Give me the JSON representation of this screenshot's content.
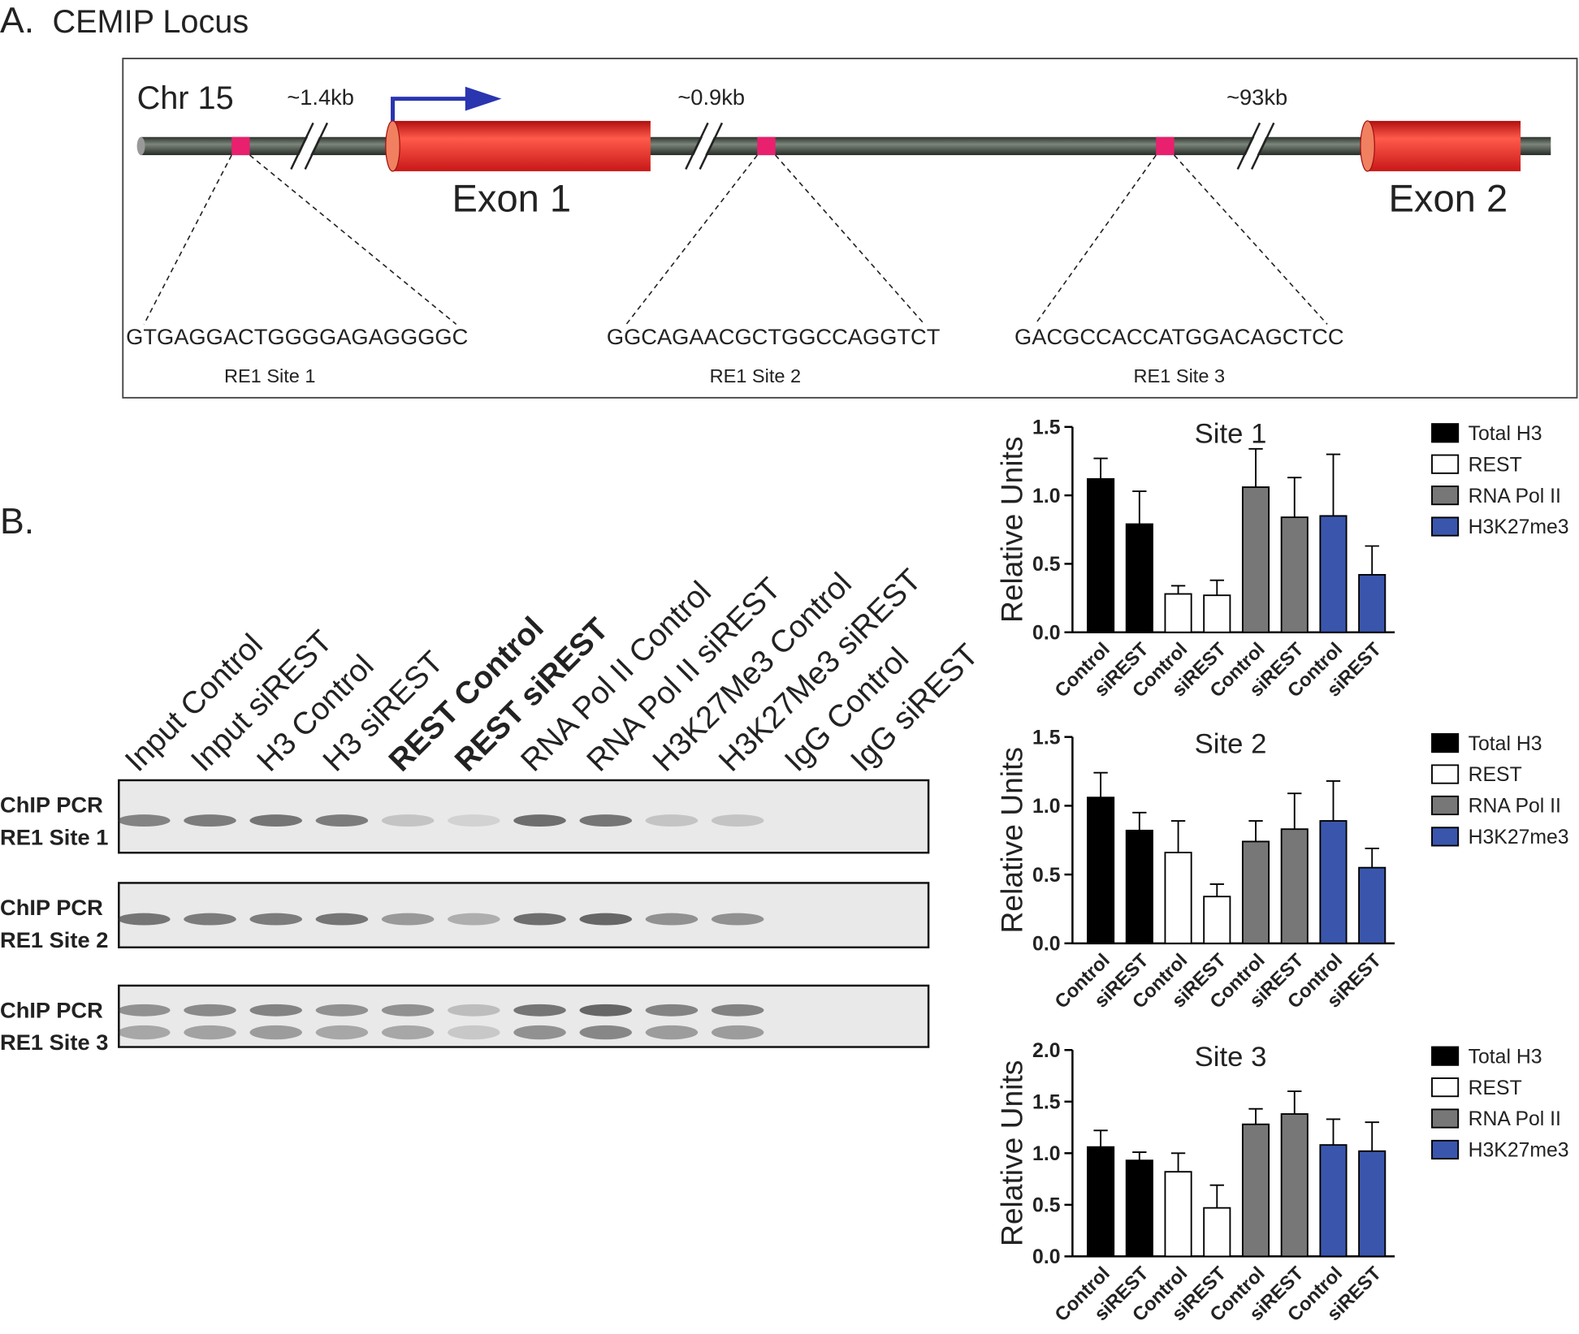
{
  "panel_a": {
    "label": "A.",
    "title": "CEMIP Locus",
    "chromosome": "Chr 15",
    "distances": [
      "~1.4kb",
      "~0.9kb",
      "~93kb"
    ],
    "exons": [
      "Exon 1",
      "Exon 2"
    ],
    "sites": [
      {
        "sequence": "GTGAGGACTGGGGAGAGGGGC",
        "label": "RE1 Site 1"
      },
      {
        "sequence": "GGCAGAACGCTGGCCAGGTCT",
        "label": "RE1 Site 2"
      },
      {
        "sequence": "GACGCCACCATGGACAGCTCC",
        "label": "RE1 Site 3"
      }
    ]
  },
  "panel_b": {
    "label": "B.",
    "lanes": [
      "Input Control",
      "Input siREST",
      "H3 Control",
      "H3 siREST",
      "REST Control",
      "REST siREST",
      "RNA Pol II Control",
      "RNA Pol II siREST",
      "H3K27Me3 Control",
      "H3K27Me3 siREST",
      "IgG Control",
      "IgG siREST"
    ],
    "rows": [
      [
        "ChIP PCR",
        "RE1 Site 1"
      ],
      [
        "ChIP PCR",
        "RE1 Site 2"
      ],
      [
        "ChIP PCR",
        "RE1 Site 3"
      ]
    ]
  },
  "chart_data": [
    {
      "type": "bar",
      "title": "Site 1",
      "y_label": "Relative Units",
      "categories": [
        "Control",
        "siREST",
        "Control",
        "siREST",
        "Control",
        "siREST",
        "Control",
        "siREST"
      ],
      "ylim": [
        0,
        1.5
      ],
      "yticks": [
        {
          "value": 0,
          "label": "0.0"
        },
        {
          "value": 0.5,
          "label": "0.5"
        },
        {
          "value": 1,
          "label": "1.0"
        },
        {
          "value": 1.5,
          "label": "1.5"
        }
      ],
      "series": [
        {
          "name": "Total H3",
          "color": "#000000",
          "values": [
            1.12,
            0.79,
            null,
            null,
            null,
            null,
            null,
            null
          ],
          "errors": [
            0.15,
            0.24,
            null,
            null,
            null,
            null,
            null,
            null
          ]
        },
        {
          "name": "REST",
          "color": "#ffffff",
          "values": [
            null,
            null,
            0.28,
            0.27,
            null,
            null,
            null,
            null
          ],
          "errors": [
            null,
            null,
            0.06,
            0.11,
            null,
            null,
            null,
            null
          ]
        },
        {
          "name": "RNA Pol II",
          "color": "#777777",
          "values": [
            null,
            null,
            null,
            null,
            1.06,
            0.84,
            null,
            null
          ],
          "errors": [
            null,
            null,
            null,
            null,
            0.28,
            0.29,
            null,
            null
          ]
        },
        {
          "name": "H3K27me3",
          "color": "#3a56ac",
          "values": [
            null,
            null,
            null,
            null,
            null,
            null,
            0.85,
            0.42
          ],
          "errors": [
            null,
            null,
            null,
            null,
            null,
            null,
            0.45,
            0.21
          ]
        }
      ]
    },
    {
      "type": "bar",
      "title": "Site 2",
      "y_label": "Relative Units",
      "categories": [
        "Control",
        "siREST",
        "Control",
        "siREST",
        "Control",
        "siREST",
        "Control",
        "siREST"
      ],
      "ylim": [
        0,
        1.5
      ],
      "yticks": [
        {
          "value": 0,
          "label": "0.0"
        },
        {
          "value": 0.5,
          "label": "0.5"
        },
        {
          "value": 1,
          "label": "1.0"
        },
        {
          "value": 1.5,
          "label": "1.5"
        }
      ],
      "series": [
        {
          "name": "Total H3",
          "color": "#000000",
          "values": [
            1.06,
            0.82,
            null,
            null,
            null,
            null,
            null,
            null
          ],
          "errors": [
            0.18,
            0.13,
            null,
            null,
            null,
            null,
            null,
            null
          ]
        },
        {
          "name": "REST",
          "color": "#ffffff",
          "values": [
            null,
            null,
            0.66,
            0.34,
            null,
            null,
            null,
            null
          ],
          "errors": [
            null,
            null,
            0.23,
            0.09,
            null,
            null,
            null,
            null
          ]
        },
        {
          "name": "RNA Pol II",
          "color": "#777777",
          "values": [
            null,
            null,
            null,
            null,
            0.74,
            0.83,
            null,
            null
          ],
          "errors": [
            null,
            null,
            null,
            null,
            0.15,
            0.26,
            null,
            null
          ]
        },
        {
          "name": "H3K27me3",
          "color": "#3a56ac",
          "values": [
            null,
            null,
            null,
            null,
            null,
            null,
            0.89,
            0.55
          ],
          "errors": [
            null,
            null,
            null,
            null,
            null,
            null,
            0.29,
            0.14
          ]
        }
      ]
    },
    {
      "type": "bar",
      "title": "Site 3",
      "y_label": "Relative Units",
      "categories": [
        "Control",
        "siREST",
        "Control",
        "siREST",
        "Control",
        "siREST",
        "Control",
        "siREST"
      ],
      "ylim": [
        0,
        2
      ],
      "yticks": [
        {
          "value": 0,
          "label": "0.0"
        },
        {
          "value": 0.5,
          "label": "0.5"
        },
        {
          "value": 1,
          "label": "1.0"
        },
        {
          "value": 1.5,
          "label": "1.5"
        },
        {
          "value": 2,
          "label": "2.0"
        }
      ],
      "series": [
        {
          "name": "Total H3",
          "color": "#000000",
          "values": [
            1.06,
            0.93,
            null,
            null,
            null,
            null,
            null,
            null
          ],
          "errors": [
            0.16,
            0.08,
            null,
            null,
            null,
            null,
            null,
            null
          ]
        },
        {
          "name": "REST",
          "color": "#ffffff",
          "values": [
            null,
            null,
            0.82,
            0.47,
            null,
            null,
            null,
            null
          ],
          "errors": [
            null,
            null,
            0.18,
            0.22,
            null,
            null,
            null,
            null
          ]
        },
        {
          "name": "RNA Pol II",
          "color": "#777777",
          "values": [
            null,
            null,
            null,
            null,
            1.28,
            1.38,
            null,
            null
          ],
          "errors": [
            null,
            null,
            null,
            null,
            0.15,
            0.22,
            null,
            null
          ]
        },
        {
          "name": "H3K27me3",
          "color": "#3a56ac",
          "values": [
            null,
            null,
            null,
            null,
            null,
            null,
            1.08,
            1.02
          ],
          "errors": [
            null,
            null,
            null,
            null,
            null,
            null,
            0.25,
            0.28
          ]
        }
      ]
    }
  ]
}
